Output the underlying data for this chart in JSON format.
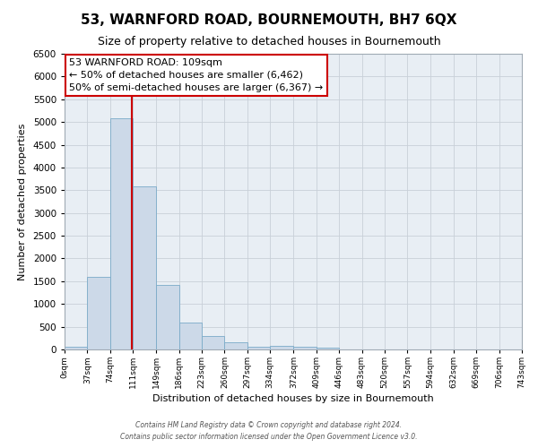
{
  "title": "53, WARNFORD ROAD, BOURNEMOUTH, BH7 6QX",
  "subtitle": "Size of property relative to detached houses in Bournemouth",
  "xlabel": "Distribution of detached houses by size in Bournemouth",
  "ylabel": "Number of detached properties",
  "bar_color": "#ccd9e8",
  "bar_edge_color": "#7aaac8",
  "bin_edges": [
    0,
    37,
    74,
    111,
    149,
    186,
    223,
    260,
    297,
    334,
    372,
    409,
    446,
    483,
    520,
    557,
    594,
    632,
    669,
    706,
    743
  ],
  "bar_heights": [
    50,
    1600,
    5080,
    3580,
    1420,
    590,
    300,
    150,
    50,
    80,
    50,
    30,
    0,
    0,
    0,
    0,
    0,
    0,
    0,
    0
  ],
  "tick_labels": [
    "0sqm",
    "37sqm",
    "74sqm",
    "111sqm",
    "149sqm",
    "186sqm",
    "223sqm",
    "260sqm",
    "297sqm",
    "334sqm",
    "372sqm",
    "409sqm",
    "446sqm",
    "483sqm",
    "520sqm",
    "557sqm",
    "594sqm",
    "632sqm",
    "669sqm",
    "706sqm",
    "743sqm"
  ],
  "ylim": [
    0,
    6500
  ],
  "xlim": [
    0,
    743
  ],
  "vline_x": 109,
  "vline_color": "#cc0000",
  "annotation_title": "53 WARNFORD ROAD: 109sqm",
  "annotation_line1": "← 50% of detached houses are smaller (6,462)",
  "annotation_line2": "50% of semi-detached houses are larger (6,367) →",
  "annotation_box_facecolor": "#ffffff",
  "annotation_box_edgecolor": "#cc0000",
  "footer1": "Contains HM Land Registry data © Crown copyright and database right 2024.",
  "footer2": "Contains public sector information licensed under the Open Government Licence v3.0.",
  "background_color": "#ffffff",
  "plot_bg_color": "#e8eef4",
  "grid_color": "#c8d0d8",
  "title_fontsize": 11,
  "subtitle_fontsize": 9,
  "xlabel_fontsize": 8,
  "ylabel_fontsize": 8
}
